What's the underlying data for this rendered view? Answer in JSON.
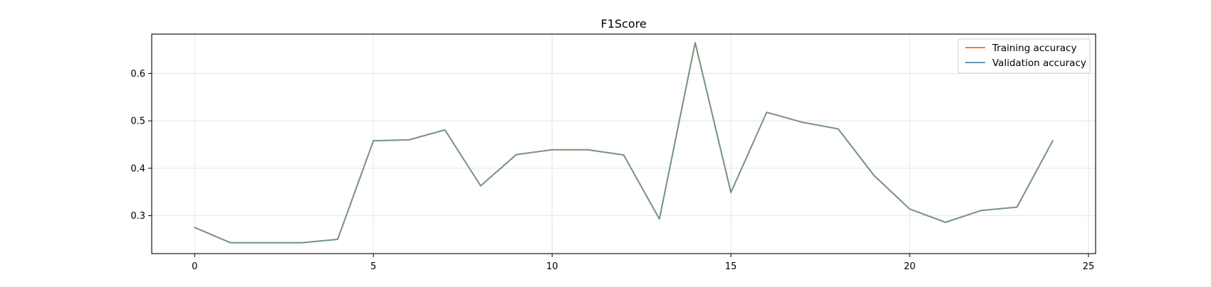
{
  "chart_data": {
    "type": "line",
    "title": "F1Score",
    "xlabel": "",
    "ylabel": "",
    "xlim": [
      -1.2,
      25.2
    ],
    "ylim": [
      0.22,
      0.683
    ],
    "xticks": [
      0,
      5,
      10,
      15,
      20,
      25
    ],
    "yticks": [
      0.3,
      0.4,
      0.5,
      0.6
    ],
    "grid": true,
    "legend_position": "top-right",
    "x": [
      0,
      1,
      2,
      3,
      4,
      5,
      6,
      7,
      8,
      9,
      10,
      11,
      12,
      13,
      14,
      15,
      16,
      17,
      18,
      19,
      20,
      21,
      22,
      23,
      24
    ],
    "series": [
      {
        "name": "Training accuracy",
        "color": "#ff7f0e",
        "values": [
          0.275,
          0.243,
          0.243,
          0.243,
          0.25,
          0.458,
          0.46,
          0.481,
          0.363,
          0.429,
          0.439,
          0.439,
          0.428,
          0.293,
          0.665,
          0.349,
          0.518,
          0.497,
          0.483,
          0.385,
          0.314,
          0.286,
          0.311,
          0.318,
          0.458
        ]
      },
      {
        "name": "Validation accuracy",
        "color": "#5f9ea0",
        "values": [
          0.275,
          0.243,
          0.243,
          0.243,
          0.25,
          0.458,
          0.46,
          0.481,
          0.363,
          0.429,
          0.439,
          0.439,
          0.428,
          0.293,
          0.665,
          0.349,
          0.518,
          0.497,
          0.483,
          0.385,
          0.314,
          0.286,
          0.311,
          0.318,
          0.458
        ]
      }
    ],
    "overlap_line_color": "#6f968a"
  }
}
